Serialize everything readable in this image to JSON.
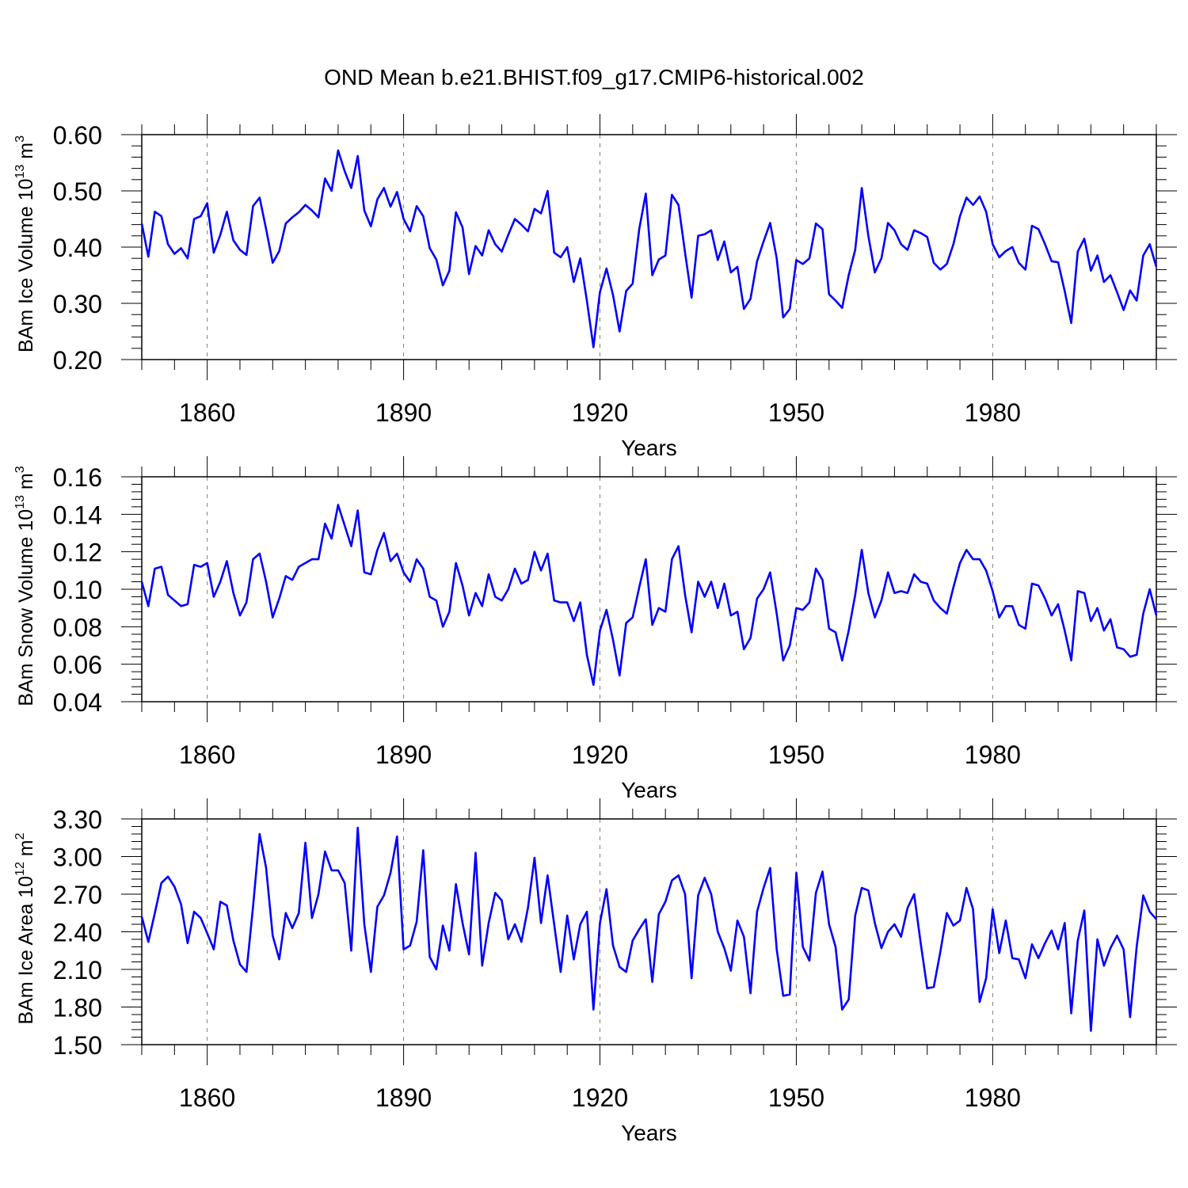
{
  "title": "OND Mean b.e21.BHIST.f09_g17.CMIP6-historical.002",
  "colors": {
    "line": "#0000ff",
    "axis": "#000000",
    "refline": "#7f7f7f"
  },
  "chart_data": [
    {
      "type": "line",
      "ylabel_main": "BAm Ice Volume 10",
      "ylabel_exp": "13",
      "ylabel_unit": " m",
      "ylabel_unit_exp": "3",
      "xlabel": "Years",
      "xlim": [
        1850,
        2005
      ],
      "ylim": [
        0.2,
        0.6
      ],
      "ytick_values": [
        0.2,
        0.3,
        0.4,
        0.5,
        0.6
      ],
      "ytick_labels": [
        "0.20",
        "0.30",
        "0.40",
        "0.50",
        "0.60"
      ],
      "xtick_values": [
        1860,
        1890,
        1920,
        1950,
        1980
      ],
      "xtick_labels": [
        "1860",
        "1890",
        "1920",
        "1950",
        "1980"
      ],
      "x_start": 1850,
      "series": [
        {
          "name": "BAm Ice Volume",
          "values": [
            0.442,
            0.383,
            0.463,
            0.455,
            0.405,
            0.388,
            0.398,
            0.38,
            0.45,
            0.455,
            0.478,
            0.39,
            0.422,
            0.463,
            0.412,
            0.395,
            0.386,
            0.473,
            0.488,
            0.432,
            0.372,
            0.393,
            0.442,
            0.453,
            0.462,
            0.475,
            0.465,
            0.453,
            0.522,
            0.5,
            0.572,
            0.535,
            0.505,
            0.562,
            0.465,
            0.437,
            0.485,
            0.505,
            0.472,
            0.498,
            0.45,
            0.428,
            0.473,
            0.455,
            0.398,
            0.378,
            0.332,
            0.358,
            0.462,
            0.435,
            0.352,
            0.402,
            0.385,
            0.43,
            0.405,
            0.392,
            0.422,
            0.45,
            0.44,
            0.428,
            0.468,
            0.46,
            0.5,
            0.39,
            0.382,
            0.4,
            0.338,
            0.38,
            0.305,
            0.222,
            0.32,
            0.362,
            0.315,
            0.25,
            0.322,
            0.335,
            0.432,
            0.495,
            0.35,
            0.378,
            0.385,
            0.493,
            0.475,
            0.39,
            0.31,
            0.42,
            0.423,
            0.43,
            0.377,
            0.41,
            0.355,
            0.365,
            0.29,
            0.308,
            0.375,
            0.41,
            0.443,
            0.38,
            0.275,
            0.29,
            0.377,
            0.37,
            0.38,
            0.442,
            0.432,
            0.316,
            0.305,
            0.292,
            0.35,
            0.395,
            0.505,
            0.42,
            0.355,
            0.38,
            0.443,
            0.43,
            0.405,
            0.395,
            0.43,
            0.425,
            0.418,
            0.372,
            0.36,
            0.37,
            0.405,
            0.455,
            0.488,
            0.475,
            0.49,
            0.463,
            0.405,
            0.382,
            0.393,
            0.4,
            0.372,
            0.36,
            0.438,
            0.432,
            0.405,
            0.375,
            0.373,
            0.322,
            0.265,
            0.392,
            0.415,
            0.358,
            0.385,
            0.338,
            0.35,
            0.32,
            0.288,
            0.323,
            0.305,
            0.385,
            0.405,
            0.365
          ]
        }
      ]
    },
    {
      "type": "line",
      "ylabel_main": "BAm Snow Volume 10",
      "ylabel_exp": "13",
      "ylabel_unit": " m",
      "ylabel_unit_exp": "3",
      "xlabel": "Years",
      "xlim": [
        1850,
        2005
      ],
      "ylim": [
        0.04,
        0.16
      ],
      "ytick_values": [
        0.04,
        0.06,
        0.08,
        0.1,
        0.12,
        0.14,
        0.16
      ],
      "ytick_labels": [
        "0.04",
        "0.06",
        "0.08",
        "0.10",
        "0.12",
        "0.14",
        "0.16"
      ],
      "xtick_values": [
        1860,
        1890,
        1920,
        1950,
        1980
      ],
      "xtick_labels": [
        "1860",
        "1890",
        "1920",
        "1950",
        "1980"
      ],
      "x_start": 1850,
      "series": [
        {
          "name": "BAm Snow Volume",
          "values": [
            0.104,
            0.091,
            0.111,
            0.112,
            0.097,
            0.094,
            0.091,
            0.092,
            0.113,
            0.112,
            0.114,
            0.096,
            0.104,
            0.115,
            0.098,
            0.086,
            0.093,
            0.116,
            0.119,
            0.104,
            0.085,
            0.095,
            0.107,
            0.105,
            0.112,
            0.114,
            0.116,
            0.116,
            0.135,
            0.127,
            0.145,
            0.134,
            0.123,
            0.142,
            0.109,
            0.108,
            0.121,
            0.13,
            0.115,
            0.119,
            0.109,
            0.104,
            0.116,
            0.111,
            0.096,
            0.094,
            0.08,
            0.088,
            0.114,
            0.102,
            0.086,
            0.098,
            0.091,
            0.108,
            0.096,
            0.094,
            0.1,
            0.111,
            0.103,
            0.105,
            0.12,
            0.11,
            0.119,
            0.094,
            0.093,
            0.093,
            0.083,
            0.093,
            0.065,
            0.049,
            0.078,
            0.089,
            0.073,
            0.054,
            0.082,
            0.085,
            0.101,
            0.116,
            0.081,
            0.09,
            0.088,
            0.116,
            0.123,
            0.097,
            0.077,
            0.104,
            0.096,
            0.104,
            0.09,
            0.103,
            0.086,
            0.088,
            0.068,
            0.074,
            0.095,
            0.1,
            0.109,
            0.087,
            0.062,
            0.07,
            0.09,
            0.089,
            0.093,
            0.111,
            0.105,
            0.079,
            0.077,
            0.062,
            0.078,
            0.097,
            0.121,
            0.098,
            0.085,
            0.094,
            0.109,
            0.098,
            0.099,
            0.098,
            0.108,
            0.104,
            0.103,
            0.094,
            0.09,
            0.087,
            0.101,
            0.114,
            0.121,
            0.116,
            0.116,
            0.11,
            0.099,
            0.085,
            0.091,
            0.091,
            0.081,
            0.079,
            0.103,
            0.102,
            0.095,
            0.086,
            0.092,
            0.078,
            0.062,
            0.099,
            0.098,
            0.083,
            0.09,
            0.078,
            0.084,
            0.069,
            0.068,
            0.064,
            0.065,
            0.087,
            0.1,
            0.086
          ]
        }
      ]
    },
    {
      "type": "line",
      "ylabel_main": "BAm Ice Area 10",
      "ylabel_exp": "12",
      "ylabel_unit": " m",
      "ylabel_unit_exp": "2",
      "xlabel": "Years",
      "xlim": [
        1850,
        2005
      ],
      "ylim": [
        1.5,
        3.3
      ],
      "ytick_values": [
        1.5,
        1.8,
        2.1,
        2.4,
        2.7,
        3.0,
        3.3
      ],
      "ytick_labels": [
        "1.50",
        "1.80",
        "2.10",
        "2.40",
        "2.70",
        "3.00",
        "3.30"
      ],
      "xtick_values": [
        1860,
        1890,
        1920,
        1950,
        1980
      ],
      "xtick_labels": [
        "1860",
        "1890",
        "1920",
        "1950",
        "1980"
      ],
      "x_start": 1850,
      "series": [
        {
          "name": "BAm Ice Area",
          "values": [
            2.52,
            2.32,
            2.55,
            2.79,
            2.84,
            2.76,
            2.62,
            2.31,
            2.56,
            2.51,
            2.39,
            2.26,
            2.64,
            2.61,
            2.33,
            2.14,
            2.08,
            2.6,
            3.18,
            2.91,
            2.37,
            2.18,
            2.55,
            2.43,
            2.55,
            3.11,
            2.51,
            2.7,
            3.04,
            2.89,
            2.89,
            2.79,
            2.25,
            3.23,
            2.46,
            2.08,
            2.6,
            2.69,
            2.87,
            3.16,
            2.26,
            2.29,
            2.48,
            3.05,
            2.2,
            2.1,
            2.45,
            2.25,
            2.78,
            2.47,
            2.22,
            3.03,
            2.13,
            2.47,
            2.71,
            2.65,
            2.34,
            2.46,
            2.32,
            2.59,
            2.99,
            2.47,
            2.85,
            2.46,
            2.08,
            2.53,
            2.18,
            2.46,
            2.56,
            1.78,
            2.47,
            2.74,
            2.29,
            2.12,
            2.08,
            2.33,
            2.42,
            2.5,
            2.0,
            2.54,
            2.64,
            2.81,
            2.85,
            2.7,
            2.03,
            2.69,
            2.83,
            2.7,
            2.4,
            2.27,
            2.09,
            2.49,
            2.36,
            1.91,
            2.56,
            2.75,
            2.91,
            2.26,
            1.89,
            1.9,
            2.87,
            2.28,
            2.17,
            2.71,
            2.88,
            2.46,
            2.28,
            1.78,
            1.86,
            2.53,
            2.75,
            2.73,
            2.47,
            2.27,
            2.4,
            2.46,
            2.36,
            2.59,
            2.7,
            2.31,
            1.95,
            1.96,
            2.24,
            2.55,
            2.45,
            2.49,
            2.75,
            2.58,
            1.84,
            2.03,
            2.58,
            2.23,
            2.49,
            2.19,
            2.18,
            2.03,
            2.3,
            2.19,
            2.31,
            2.41,
            2.26,
            2.47,
            1.75,
            2.33,
            2.57,
            1.61,
            2.34,
            2.13,
            2.27,
            2.37,
            2.26,
            1.72,
            2.28,
            2.69,
            2.56,
            2.5
          ]
        }
      ]
    }
  ]
}
